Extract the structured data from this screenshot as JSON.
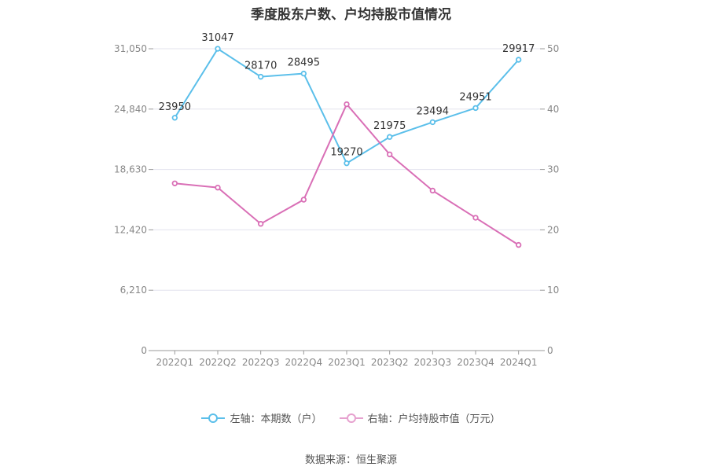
{
  "chart_data": {
    "type": "line",
    "title": "季度股东户数、户均持股市值情况",
    "categories": [
      "2022Q1",
      "2022Q2",
      "2022Q3",
      "2022Q4",
      "2023Q1",
      "2023Q2",
      "2023Q3",
      "2023Q4",
      "2024Q1"
    ],
    "left_axis": {
      "min": 0,
      "max": 31050,
      "ticks": [
        "0",
        "6,210",
        "12,420",
        "18,630",
        "24,840",
        "31,050"
      ]
    },
    "right_axis": {
      "min": 0,
      "max": 50,
      "ticks": [
        "0",
        "10",
        "20",
        "30",
        "40",
        "50"
      ]
    },
    "series": [
      {
        "name": "左轴：本期数（户）",
        "axis": "left",
        "color": "#5bbfea",
        "values": [
          23950,
          31047,
          28170,
          28495,
          19270,
          21975,
          23494,
          24951,
          29917
        ],
        "labels": [
          "23950",
          "31047",
          "28170",
          "28495",
          "19270",
          "21975",
          "23494",
          "24951",
          "29917"
        ]
      },
      {
        "name": "右轴：户均持股市值（万元）",
        "axis": "right",
        "color": "#d96fb6",
        "values": [
          27.7,
          27.0,
          21.0,
          25.0,
          40.8,
          32.5,
          26.5,
          22.0,
          17.5
        ]
      }
    ],
    "grid": true,
    "legend_position": "bottom"
  },
  "source": "数据来源：恒生聚源"
}
